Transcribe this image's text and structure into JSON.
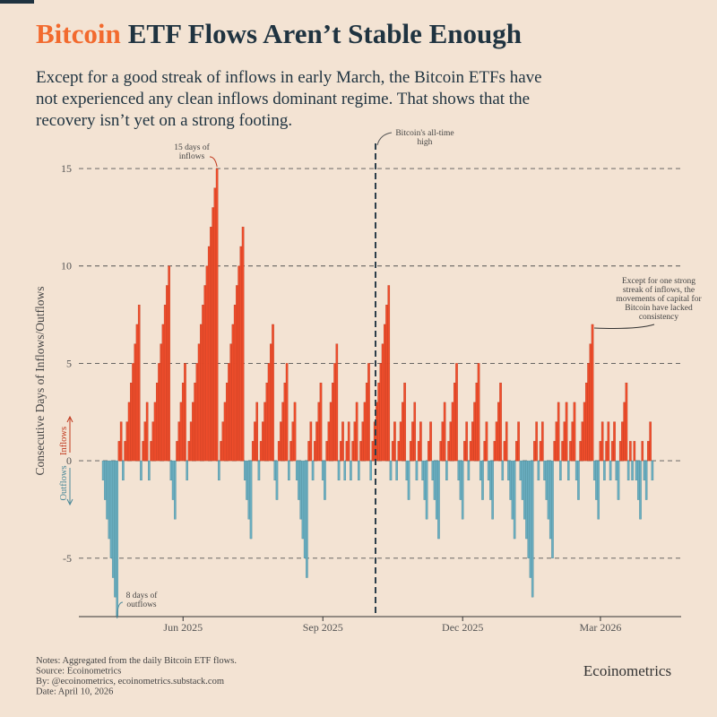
{
  "chart_data": {
    "type": "bar",
    "title_highlight": "Bitcoin",
    "title": "ETF Flows Aren’t Stable Enough",
    "subtitle": [
      "Except for a good streak of inflows in early March, the Bitcoin ETFs have",
      "not experienced any clean inflows dominant regime. That shows that the",
      "recovery isn’t yet on a strong footing."
    ],
    "y_label": "Consecutive Days of Inflows/Outflows",
    "inflows_label": "Inflows",
    "outflows_label": "Outflows",
    "annotations": {
      "ath": [
        "Bitcoin's all-time",
        "high"
      ],
      "max_inflows": [
        "15 days of",
        "inflows"
      ],
      "max_outflows": [
        "8 days of",
        "outflows"
      ],
      "recent": [
        "Except for one strong",
        "streak of inflows, the",
        "movements of capital for",
        "Bitcoin have lacked",
        "consistency"
      ]
    },
    "notes": [
      "Notes: Aggregated from the daily Bitcoin ETF flows.",
      "Source: Ecoinometrics",
      "By: @ecoinometrics, ecoinometrics.substack.com",
      "Date: April 10, 2026"
    ],
    "brand": "Ecoinometrics",
    "inflow_color": "#f04e2c",
    "outflow_color": "#6aaec0",
    "values": [
      -1,
      -2,
      -3,
      -4,
      -5,
      -6,
      -7,
      -8,
      1,
      2,
      -1,
      1,
      2,
      3,
      4,
      5,
      6,
      7,
      8,
      -1,
      1,
      2,
      3,
      -1,
      1,
      2,
      3,
      4,
      5,
      6,
      7,
      8,
      9,
      10,
      -1,
      -2,
      -3,
      1,
      2,
      3,
      4,
      5,
      -1,
      1,
      2,
      3,
      4,
      5,
      6,
      7,
      8,
      9,
      10,
      11,
      12,
      13,
      14,
      15,
      -1,
      1,
      2,
      3,
      4,
      5,
      6,
      7,
      8,
      9,
      10,
      11,
      12,
      -1,
      -2,
      -3,
      -4,
      1,
      2,
      3,
      -1,
      1,
      2,
      3,
      4,
      5,
      6,
      7,
      -1,
      -2,
      1,
      2,
      3,
      4,
      5,
      -1,
      1,
      2,
      3,
      -1,
      -2,
      -3,
      -4,
      -5,
      -6,
      1,
      2,
      -1,
      1,
      2,
      3,
      4,
      -1,
      -2,
      1,
      2,
      3,
      4,
      5,
      6,
      -1,
      1,
      2,
      -1,
      1,
      2,
      -1,
      1,
      2,
      3,
      -1,
      1,
      2,
      3,
      4,
      5,
      -1,
      1,
      2,
      3,
      4,
      5,
      6,
      7,
      8,
      9,
      -1,
      1,
      2,
      -1,
      1,
      2,
      3,
      4,
      -1,
      -2,
      1,
      2,
      3,
      -1,
      1,
      2,
      -1,
      -2,
      -3,
      1,
      2,
      -1,
      -2,
      -3,
      -4,
      1,
      2,
      3,
      -1,
      1,
      2,
      3,
      4,
      5,
      -1,
      -2,
      -3,
      1,
      2,
      -1,
      1,
      2,
      3,
      4,
      5,
      -1,
      -2,
      1,
      2,
      -1,
      -2,
      -3,
      1,
      2,
      3,
      4,
      -1,
      1,
      2,
      -1,
      -2,
      -3,
      -4,
      1,
      2,
      -1,
      -2,
      -3,
      -4,
      -5,
      -6,
      -7,
      1,
      2,
      -1,
      1,
      2,
      -1,
      -2,
      -3,
      -4,
      -5,
      1,
      2,
      3,
      -1,
      1,
      2,
      3,
      -1,
      1,
      2,
      3,
      -1,
      -2,
      1,
      2,
      3,
      4,
      5,
      6,
      7,
      -1,
      -2,
      -3,
      1,
      2,
      -1,
      1,
      2,
      -1,
      1,
      2,
      -1,
      -2,
      1,
      2,
      3,
      4,
      -1,
      1,
      -1,
      1,
      -1,
      -2,
      -3,
      1,
      -1,
      -2,
      1,
      2,
      -1
    ],
    "xlim": [
      -0.5,
      275.5
    ],
    "xticks": [
      {
        "value": 40,
        "label": "Jun 2025"
      },
      {
        "value": 110,
        "label": "Sep 2025"
      },
      {
        "value": 180,
        "label": "Dec 2025"
      },
      {
        "value": 249,
        "label": "Mar 2026"
      }
    ],
    "ylim": [
      -8,
      16.2
    ],
    "yticks": [
      -5,
      0,
      5,
      10,
      15
    ],
    "grid": true
  }
}
